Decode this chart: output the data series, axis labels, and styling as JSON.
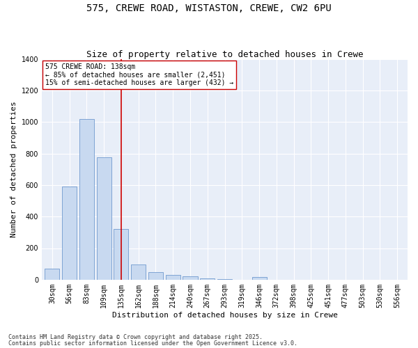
{
  "title1": "575, CREWE ROAD, WISTASTON, CREWE, CW2 6PU",
  "title2": "Size of property relative to detached houses in Crewe",
  "xlabel": "Distribution of detached houses by size in Crewe",
  "ylabel": "Number of detached properties",
  "categories": [
    "30sqm",
    "56sqm",
    "83sqm",
    "109sqm",
    "135sqm",
    "162sqm",
    "188sqm",
    "214sqm",
    "240sqm",
    "267sqm",
    "293sqm",
    "319sqm",
    "346sqm",
    "372sqm",
    "398sqm",
    "425sqm",
    "451sqm",
    "477sqm",
    "503sqm",
    "530sqm",
    "556sqm"
  ],
  "values": [
    70,
    590,
    1020,
    775,
    320,
    95,
    50,
    30,
    20,
    10,
    5,
    0,
    15,
    0,
    0,
    0,
    0,
    0,
    0,
    0,
    0
  ],
  "bar_color": "#c8d9f0",
  "bar_edge_color": "#5b8ac7",
  "vline_x": 4,
  "vline_color": "#cc0000",
  "annotation_text": "575 CREWE ROAD: 138sqm\n← 85% of detached houses are smaller (2,451)\n15% of semi-detached houses are larger (432) →",
  "annotation_box_color": "#ffffff",
  "annotation_box_edge": "#cc0000",
  "ylim": [
    0,
    1400
  ],
  "yticks": [
    0,
    200,
    400,
    600,
    800,
    1000,
    1200,
    1400
  ],
  "background_color": "#e8eef8",
  "footer1": "Contains HM Land Registry data © Crown copyright and database right 2025.",
  "footer2": "Contains public sector information licensed under the Open Government Licence v3.0.",
  "title_fontsize": 10,
  "subtitle_fontsize": 9,
  "tick_fontsize": 7,
  "ylabel_fontsize": 8,
  "xlabel_fontsize": 8,
  "annotation_fontsize": 7,
  "footer_fontsize": 6
}
